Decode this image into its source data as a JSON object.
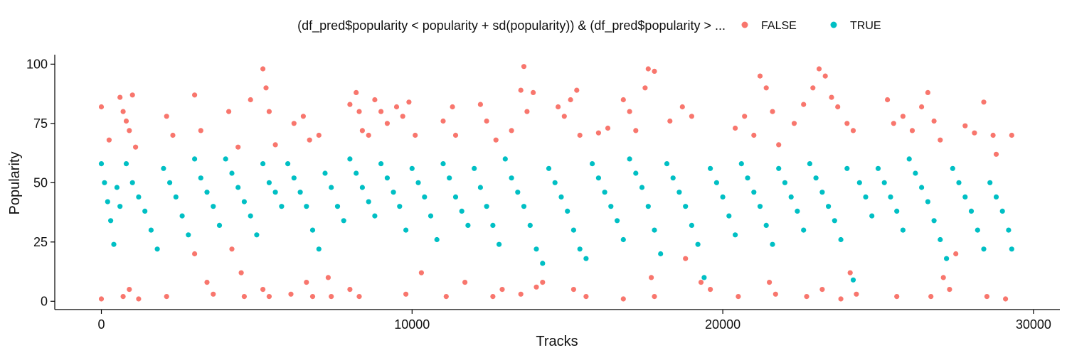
{
  "chart_data": {
    "type": "scatter",
    "xlabel": "Tracks",
    "ylabel": "Popularity",
    "xlim": [
      -1500,
      30850
    ],
    "ylim": [
      -3.5,
      104
    ],
    "x_ticks": [
      0,
      10000,
      20000,
      30000
    ],
    "x_tick_labels": [
      "0",
      "10000",
      "20000",
      "30000"
    ],
    "y_ticks": [
      0,
      25,
      50,
      75,
      100
    ],
    "y_tick_labels": [
      "0",
      "25",
      "50",
      "75",
      "100"
    ],
    "grid": false,
    "legend_position": "top",
    "legend": {
      "title": "(df_pred$popularity < popularity + sd(popularity)) & (df_pred$popularity > ...",
      "entries": [
        {
          "label": "FALSE",
          "color": "#F8766D"
        },
        {
          "label": "TRUE",
          "color": "#00BFC4"
        }
      ]
    },
    "series": [
      {
        "name": "FALSE",
        "color": "#F8766D",
        "points": [
          [
            0,
            82
          ],
          [
            0,
            1
          ],
          [
            250,
            68
          ],
          [
            600,
            86
          ],
          [
            700,
            80
          ],
          [
            800,
            76
          ],
          [
            900,
            72
          ],
          [
            1000,
            87
          ],
          [
            1100,
            65
          ],
          [
            700,
            2
          ],
          [
            900,
            5
          ],
          [
            1200,
            1
          ],
          [
            2100,
            78
          ],
          [
            2300,
            70
          ],
          [
            2100,
            2
          ],
          [
            3000,
            87
          ],
          [
            3200,
            72
          ],
          [
            3000,
            20
          ],
          [
            3400,
            8
          ],
          [
            3600,
            3
          ],
          [
            4100,
            80
          ],
          [
            4400,
            65
          ],
          [
            4800,
            85
          ],
          [
            4200,
            22
          ],
          [
            4500,
            12
          ],
          [
            4600,
            2
          ],
          [
            5200,
            98
          ],
          [
            5300,
            90
          ],
          [
            5400,
            80
          ],
          [
            5600,
            66
          ],
          [
            5200,
            5
          ],
          [
            5400,
            2
          ],
          [
            6200,
            75
          ],
          [
            6500,
            78
          ],
          [
            6700,
            68
          ],
          [
            6100,
            3
          ],
          [
            6600,
            8
          ],
          [
            6800,
            2
          ],
          [
            7000,
            70
          ],
          [
            7300,
            10
          ],
          [
            7400,
            2
          ],
          [
            8000,
            83
          ],
          [
            8200,
            88
          ],
          [
            8300,
            80
          ],
          [
            8400,
            72
          ],
          [
            8600,
            70
          ],
          [
            8800,
            85
          ],
          [
            9000,
            80
          ],
          [
            8000,
            5
          ],
          [
            8300,
            2
          ],
          [
            9200,
            75
          ],
          [
            9500,
            82
          ],
          [
            9700,
            78
          ],
          [
            9900,
            84
          ],
          [
            10100,
            70
          ],
          [
            9800,
            3
          ],
          [
            10300,
            12
          ],
          [
            11000,
            76
          ],
          [
            11300,
            82
          ],
          [
            11400,
            70
          ],
          [
            11100,
            2
          ],
          [
            11700,
            8
          ],
          [
            12200,
            83
          ],
          [
            12400,
            76
          ],
          [
            12700,
            68
          ],
          [
            12600,
            2
          ],
          [
            12900,
            5
          ],
          [
            13200,
            72
          ],
          [
            13500,
            89
          ],
          [
            13600,
            99
          ],
          [
            13700,
            80
          ],
          [
            13900,
            88
          ],
          [
            13500,
            3
          ],
          [
            14000,
            6
          ],
          [
            14200,
            8
          ],
          [
            14700,
            82
          ],
          [
            14900,
            78
          ],
          [
            15100,
            85
          ],
          [
            15300,
            89
          ],
          [
            15400,
            70
          ],
          [
            15200,
            5
          ],
          [
            15600,
            2
          ],
          [
            16000,
            71
          ],
          [
            16300,
            73
          ],
          [
            16800,
            85
          ],
          [
            17000,
            80
          ],
          [
            17200,
            72
          ],
          [
            16800,
            1
          ],
          [
            17500,
            90
          ],
          [
            17600,
            98
          ],
          [
            17800,
            97
          ],
          [
            17700,
            10
          ],
          [
            17800,
            2
          ],
          [
            18300,
            76
          ],
          [
            18700,
            82
          ],
          [
            19000,
            78
          ],
          [
            18800,
            18
          ],
          [
            19300,
            8
          ],
          [
            19600,
            5
          ],
          [
            20400,
            73
          ],
          [
            20700,
            78
          ],
          [
            21000,
            70
          ],
          [
            20500,
            2
          ],
          [
            21200,
            95
          ],
          [
            21400,
            90
          ],
          [
            21600,
            80
          ],
          [
            21800,
            66
          ],
          [
            21500,
            8
          ],
          [
            21700,
            3
          ],
          [
            22300,
            75
          ],
          [
            22600,
            83
          ],
          [
            22900,
            90
          ],
          [
            23100,
            98
          ],
          [
            23300,
            95
          ],
          [
            23500,
            86
          ],
          [
            23700,
            82
          ],
          [
            22700,
            2
          ],
          [
            23200,
            5
          ],
          [
            23800,
            1
          ],
          [
            24000,
            75
          ],
          [
            24200,
            72
          ],
          [
            24100,
            12
          ],
          [
            24300,
            3
          ],
          [
            25300,
            85
          ],
          [
            25500,
            75
          ],
          [
            25800,
            78
          ],
          [
            25600,
            2
          ],
          [
            26100,
            72
          ],
          [
            26400,
            82
          ],
          [
            26600,
            88
          ],
          [
            26800,
            76
          ],
          [
            27000,
            68
          ],
          [
            26700,
            2
          ],
          [
            27100,
            10
          ],
          [
            27300,
            5
          ],
          [
            27500,
            20
          ],
          [
            27800,
            74
          ],
          [
            28100,
            71
          ],
          [
            28400,
            84
          ],
          [
            28700,
            70
          ],
          [
            28800,
            62
          ],
          [
            28500,
            2
          ],
          [
            29100,
            1
          ],
          [
            29300,
            70
          ]
        ]
      },
      {
        "name": "TRUE",
        "color": "#00BFC4",
        "points": [
          [
            0,
            58
          ],
          [
            100,
            50
          ],
          [
            200,
            42
          ],
          [
            300,
            34
          ],
          [
            400,
            24
          ],
          [
            500,
            48
          ],
          [
            600,
            40
          ],
          [
            800,
            58
          ],
          [
            1000,
            50
          ],
          [
            1200,
            44
          ],
          [
            1400,
            38
          ],
          [
            1600,
            30
          ],
          [
            1800,
            22
          ],
          [
            2000,
            56
          ],
          [
            2200,
            50
          ],
          [
            2400,
            44
          ],
          [
            2600,
            36
          ],
          [
            2800,
            28
          ],
          [
            3000,
            60
          ],
          [
            3200,
            52
          ],
          [
            3400,
            46
          ],
          [
            3600,
            40
          ],
          [
            3800,
            32
          ],
          [
            4000,
            60
          ],
          [
            4200,
            54
          ],
          [
            4400,
            48
          ],
          [
            4600,
            42
          ],
          [
            4800,
            36
          ],
          [
            5000,
            28
          ],
          [
            5200,
            58
          ],
          [
            5400,
            50
          ],
          [
            5600,
            46
          ],
          [
            5800,
            40
          ],
          [
            6000,
            58
          ],
          [
            6200,
            52
          ],
          [
            6400,
            46
          ],
          [
            6600,
            40
          ],
          [
            6800,
            30
          ],
          [
            7000,
            22
          ],
          [
            7200,
            54
          ],
          [
            7400,
            48
          ],
          [
            7600,
            40
          ],
          [
            7800,
            34
          ],
          [
            8000,
            60
          ],
          [
            8200,
            54
          ],
          [
            8400,
            48
          ],
          [
            8600,
            42
          ],
          [
            8800,
            36
          ],
          [
            9000,
            58
          ],
          [
            9200,
            52
          ],
          [
            9400,
            46
          ],
          [
            9600,
            40
          ],
          [
            9800,
            30
          ],
          [
            10000,
            56
          ],
          [
            10200,
            50
          ],
          [
            10400,
            44
          ],
          [
            10600,
            36
          ],
          [
            10800,
            26
          ],
          [
            11000,
            58
          ],
          [
            11200,
            52
          ],
          [
            11400,
            44
          ],
          [
            11600,
            38
          ],
          [
            11800,
            32
          ],
          [
            12000,
            56
          ],
          [
            12200,
            48
          ],
          [
            12400,
            40
          ],
          [
            12600,
            32
          ],
          [
            12800,
            24
          ],
          [
            13000,
            60
          ],
          [
            13200,
            52
          ],
          [
            13400,
            46
          ],
          [
            13600,
            40
          ],
          [
            13800,
            32
          ],
          [
            14000,
            22
          ],
          [
            14200,
            16
          ],
          [
            14400,
            56
          ],
          [
            14600,
            50
          ],
          [
            14800,
            44
          ],
          [
            15000,
            38
          ],
          [
            15200,
            30
          ],
          [
            15400,
            22
          ],
          [
            15600,
            18
          ],
          [
            15800,
            58
          ],
          [
            16000,
            52
          ],
          [
            16200,
            46
          ],
          [
            16400,
            40
          ],
          [
            16600,
            34
          ],
          [
            16800,
            26
          ],
          [
            17000,
            60
          ],
          [
            17200,
            54
          ],
          [
            17400,
            48
          ],
          [
            17600,
            40
          ],
          [
            17800,
            30
          ],
          [
            18000,
            20
          ],
          [
            18200,
            58
          ],
          [
            18400,
            52
          ],
          [
            18600,
            46
          ],
          [
            18800,
            40
          ],
          [
            19000,
            32
          ],
          [
            19200,
            24
          ],
          [
            19400,
            10
          ],
          [
            19600,
            56
          ],
          [
            19800,
            50
          ],
          [
            20000,
            44
          ],
          [
            20200,
            36
          ],
          [
            20400,
            28
          ],
          [
            20600,
            58
          ],
          [
            20800,
            52
          ],
          [
            21000,
            46
          ],
          [
            21200,
            40
          ],
          [
            21400,
            32
          ],
          [
            21600,
            24
          ],
          [
            21800,
            56
          ],
          [
            22000,
            50
          ],
          [
            22200,
            44
          ],
          [
            22400,
            38
          ],
          [
            22600,
            30
          ],
          [
            22800,
            58
          ],
          [
            23000,
            52
          ],
          [
            23200,
            46
          ],
          [
            23400,
            40
          ],
          [
            23600,
            34
          ],
          [
            23800,
            26
          ],
          [
            24000,
            56
          ],
          [
            24200,
            9
          ],
          [
            24400,
            50
          ],
          [
            24600,
            44
          ],
          [
            24800,
            36
          ],
          [
            25000,
            56
          ],
          [
            25200,
            50
          ],
          [
            25400,
            44
          ],
          [
            25600,
            38
          ],
          [
            25800,
            30
          ],
          [
            26000,
            60
          ],
          [
            26200,
            54
          ],
          [
            26400,
            48
          ],
          [
            26600,
            42
          ],
          [
            26800,
            34
          ],
          [
            27000,
            26
          ],
          [
            27200,
            18
          ],
          [
            27400,
            56
          ],
          [
            27600,
            50
          ],
          [
            27800,
            44
          ],
          [
            28000,
            38
          ],
          [
            28200,
            30
          ],
          [
            28400,
            22
          ],
          [
            28600,
            50
          ],
          [
            28800,
            44
          ],
          [
            29000,
            38
          ],
          [
            29200,
            30
          ],
          [
            29300,
            22
          ]
        ]
      }
    ]
  }
}
